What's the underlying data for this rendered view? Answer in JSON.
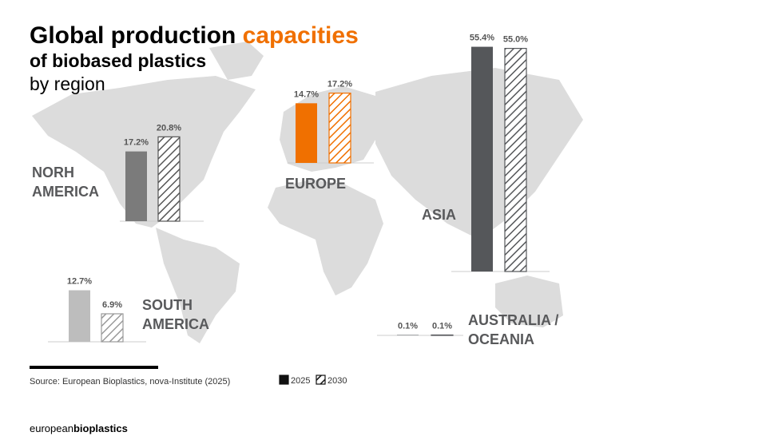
{
  "title": {
    "part1": "Global production ",
    "part2": "capacities",
    "line2": "of biobased plastics",
    "line3": "by region"
  },
  "chart_data": {
    "type": "bar",
    "series": [
      {
        "name": "2025",
        "color": "#111111"
      },
      {
        "name": "2030",
        "color": "#111111",
        "pattern": "hatched"
      }
    ],
    "groups": [
      {
        "name": [
          "NORH",
          "AMERICA"
        ],
        "values": [
          17.2,
          20.8
        ],
        "value_labels": [
          "17.2%",
          "20.8%"
        ],
        "colors": [
          "#7b7b7b",
          "#555555"
        ]
      },
      {
        "name": [
          "EUROPE"
        ],
        "values": [
          14.7,
          17.2
        ],
        "value_labels": [
          "14.7%",
          "17.2%"
        ],
        "colors": [
          "#f07000",
          "#f07000"
        ]
      },
      {
        "name": [
          "ASIA"
        ],
        "values": [
          55.4,
          55.0
        ],
        "value_labels": [
          "55.4%",
          "55.0%"
        ],
        "colors": [
          "#55575a",
          "#55575a"
        ]
      },
      {
        "name": [
          "SOUTH",
          "AMERICA"
        ],
        "values": [
          12.7,
          6.9
        ],
        "value_labels": [
          "12.7%",
          "6.9%"
        ],
        "colors": [
          "#bdbdbd",
          "#9a9a9a"
        ]
      },
      {
        "name": [
          "AUSTRALIA /",
          "OCEANIA"
        ],
        "values": [
          0.1,
          0.1
        ],
        "value_labels": [
          "0.1%",
          "0.1%"
        ],
        "colors": [
          "#55575a",
          "#55575a"
        ]
      }
    ]
  },
  "source": "Source: European Bioplastics, nova-Institute (2025)",
  "footer": {
    "part1": "european",
    "part2": "bioplastics"
  }
}
